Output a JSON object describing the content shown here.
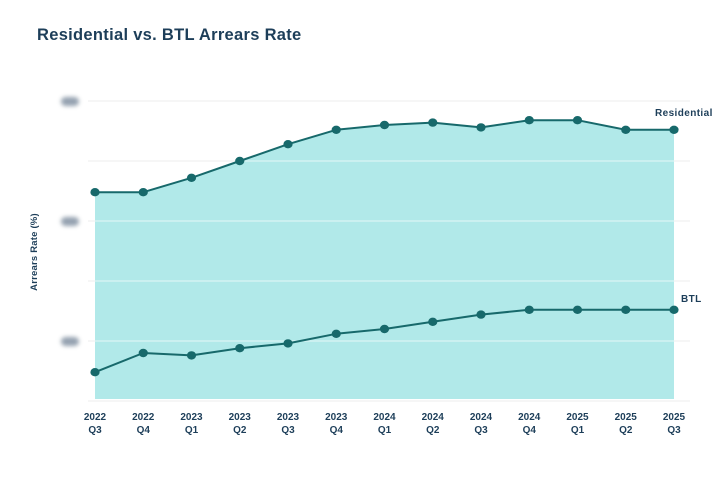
{
  "title": "Residential vs. BTL Arrears Rate",
  "series_labels": {
    "residential": "Residential",
    "btl": "BTL"
  },
  "y_axis": {
    "label": "Arrears Rate (%)",
    "min": 0,
    "max": 1.25,
    "gridline_step": 0.25,
    "tick_labels_redacted": true,
    "redacted_tick_positions": [
      1.25,
      0.75,
      0.25
    ]
  },
  "colors": {
    "title_text": "#1d3e59",
    "axis_text": "#1d3e59",
    "line": "#17696b",
    "point": "#17696b",
    "area_fill": "#b1e9e9",
    "gridline": "#ececec",
    "gridline_on_fill": "rgba(255,255,255,0.45)",
    "redacted_tick": "#8291a2",
    "background": "#ffffff"
  },
  "chart_data": {
    "type": "area",
    "title": "Residential vs. BTL Arrears Rate",
    "xlabel": "",
    "ylabel": "Arrears Rate (%)",
    "ylim": [
      0,
      1.25
    ],
    "grid": true,
    "legend_position": "inline-right-of-lines",
    "categories": [
      "2022 Q3",
      "2022 Q4",
      "2023 Q1",
      "2023 Q2",
      "2023 Q3",
      "2023 Q4",
      "2024 Q1",
      "2024 Q2",
      "2024 Q3",
      "2024 Q4",
      "2025 Q1",
      "2025 Q2",
      "2025 Q3"
    ],
    "series": [
      {
        "name": "Residential",
        "area_fill": true,
        "values": [
          0.87,
          0.87,
          0.93,
          1.0,
          1.07,
          1.13,
          1.15,
          1.16,
          1.14,
          1.17,
          1.17,
          1.13,
          1.13
        ]
      },
      {
        "name": "BTL",
        "area_fill": false,
        "values": [
          0.12,
          0.2,
          0.19,
          0.22,
          0.24,
          0.28,
          0.3,
          0.33,
          0.36,
          0.38,
          0.38,
          0.38,
          0.38
        ]
      }
    ],
    "note": "Y-axis tick numbers are blurred (redacted) in the source image; series values estimated from gridline spacing."
  }
}
